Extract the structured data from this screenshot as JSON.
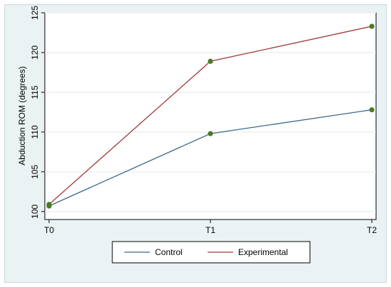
{
  "chart_data": {
    "type": "line",
    "categories": [
      "T0",
      "T1",
      "T2"
    ],
    "series": [
      {
        "name": "Control",
        "values": [
          100.7,
          109.8,
          112.8
        ],
        "color": "#3d6a8c"
      },
      {
        "name": "Experimental",
        "values": [
          100.9,
          118.9,
          123.3
        ],
        "color": "#a0393a"
      }
    ],
    "marker_color": "#4a7a1f",
    "ylabel": "Abduction ROM (degrees)",
    "xlabel": "",
    "title": "",
    "ylim": [
      99,
      125
    ],
    "yticks": [
      100,
      105,
      110,
      115,
      120,
      125
    ],
    "grid": "horizontal",
    "legend_position": "bottom"
  }
}
